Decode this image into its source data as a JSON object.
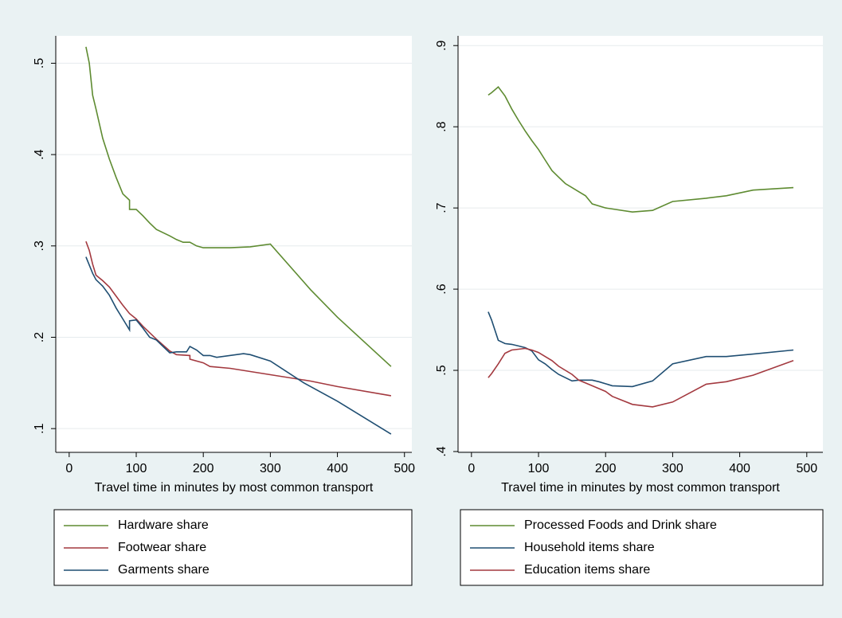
{
  "chart_data": [
    {
      "type": "line",
      "xlabel": "Travel time in minutes by most common transport",
      "xlim": [
        -20,
        511
      ],
      "ylim": [
        0.074,
        0.53
      ],
      "grid": true,
      "xticks": [
        0,
        100,
        200,
        300,
        400,
        500
      ],
      "yticks": [
        {
          "value": 0.1,
          "label": ".1"
        },
        {
          "value": 0.2,
          "label": ".2"
        },
        {
          "value": 0.3,
          "label": ".3"
        },
        {
          "value": 0.4,
          "label": ".4"
        },
        {
          "value": 0.5,
          "label": ".5"
        }
      ],
      "series": [
        {
          "name": "Hardware share",
          "color": "#5e8b31",
          "x": [
            25,
            30,
            35,
            40,
            50,
            60,
            70,
            80,
            90,
            90,
            100,
            110,
            120,
            130,
            150,
            160,
            170,
            180,
            190,
            200,
            240,
            270,
            300,
            360,
            400,
            480
          ],
          "values": [
            0.518,
            0.5,
            0.465,
            0.45,
            0.418,
            0.395,
            0.375,
            0.357,
            0.35,
            0.34,
            0.34,
            0.333,
            0.325,
            0.318,
            0.311,
            0.307,
            0.304,
            0.304,
            0.3,
            0.298,
            0.298,
            0.299,
            0.302,
            0.252,
            0.222,
            0.168
          ]
        },
        {
          "name": "Footwear share",
          "color": "#a3393f",
          "x": [
            25,
            30,
            35,
            40,
            50,
            60,
            70,
            80,
            90,
            100,
            110,
            120,
            130,
            150,
            160,
            180,
            180,
            200,
            210,
            240,
            300,
            360,
            400,
            480
          ],
          "values": [
            0.305,
            0.295,
            0.28,
            0.268,
            0.262,
            0.255,
            0.245,
            0.235,
            0.226,
            0.22,
            0.212,
            0.205,
            0.198,
            0.185,
            0.181,
            0.18,
            0.176,
            0.172,
            0.168,
            0.166,
            0.159,
            0.152,
            0.146,
            0.136
          ]
        },
        {
          "name": "Garments share",
          "color": "#1f4e72",
          "x": [
            25,
            35,
            40,
            50,
            60,
            70,
            80,
            90,
            90,
            100,
            110,
            120,
            130,
            140,
            150,
            160,
            175,
            180,
            190,
            200,
            210,
            220,
            260,
            270,
            300,
            350,
            400,
            480
          ],
          "values": [
            0.288,
            0.27,
            0.263,
            0.256,
            0.246,
            0.232,
            0.22,
            0.208,
            0.218,
            0.219,
            0.21,
            0.2,
            0.197,
            0.19,
            0.183,
            0.184,
            0.184,
            0.19,
            0.186,
            0.18,
            0.18,
            0.178,
            0.182,
            0.181,
            0.174,
            0.15,
            0.13,
            0.094
          ]
        }
      ]
    },
    {
      "type": "line",
      "xlabel": "Travel time in minutes by most common transport",
      "xlim": [
        -20,
        524
      ],
      "ylim": [
        0.399,
        0.912
      ],
      "grid": true,
      "xticks": [
        0,
        100,
        200,
        300,
        400,
        500
      ],
      "yticks": [
        {
          "value": 0.4,
          "label": ".4"
        },
        {
          "value": 0.5,
          "label": ".5"
        },
        {
          "value": 0.6,
          "label": ".6"
        },
        {
          "value": 0.7,
          "label": ".7"
        },
        {
          "value": 0.8,
          "label": ".8"
        },
        {
          "value": 0.9,
          "label": ".9"
        }
      ],
      "series": [
        {
          "name": "Processed Foods and Drink share",
          "color": "#5e8b31",
          "x": [
            25,
            30,
            40,
            50,
            60,
            70,
            80,
            90,
            100,
            110,
            120,
            130,
            140,
            150,
            160,
            170,
            180,
            200,
            240,
            270,
            300,
            350,
            380,
            420,
            480
          ],
          "values": [
            0.839,
            0.842,
            0.849,
            0.838,
            0.822,
            0.808,
            0.795,
            0.783,
            0.772,
            0.759,
            0.746,
            0.738,
            0.73,
            0.725,
            0.72,
            0.715,
            0.705,
            0.7,
            0.695,
            0.697,
            0.708,
            0.712,
            0.715,
            0.722,
            0.725
          ]
        },
        {
          "name": "Household items share",
          "color": "#1f4e72",
          "x": [
            25,
            30,
            40,
            50,
            60,
            70,
            80,
            90,
            100,
            110,
            120,
            130,
            150,
            160,
            180,
            190,
            210,
            240,
            270,
            300,
            350,
            380,
            420,
            480
          ],
          "values": [
            0.572,
            0.562,
            0.537,
            0.533,
            0.532,
            0.53,
            0.528,
            0.524,
            0.513,
            0.508,
            0.501,
            0.495,
            0.487,
            0.488,
            0.488,
            0.486,
            0.481,
            0.48,
            0.487,
            0.508,
            0.517,
            0.517,
            0.52,
            0.525
          ]
        },
        {
          "name": "Education items share",
          "color": "#a3393f",
          "x": [
            25,
            30,
            40,
            50,
            60,
            70,
            80,
            90,
            100,
            110,
            120,
            130,
            150,
            160,
            180,
            200,
            210,
            240,
            270,
            300,
            350,
            380,
            420,
            480
          ],
          "values": [
            0.491,
            0.496,
            0.508,
            0.521,
            0.525,
            0.526,
            0.527,
            0.525,
            0.522,
            0.517,
            0.512,
            0.505,
            0.495,
            0.488,
            0.481,
            0.474,
            0.468,
            0.458,
            0.455,
            0.461,
            0.483,
            0.486,
            0.494,
            0.512
          ]
        }
      ]
    }
  ]
}
